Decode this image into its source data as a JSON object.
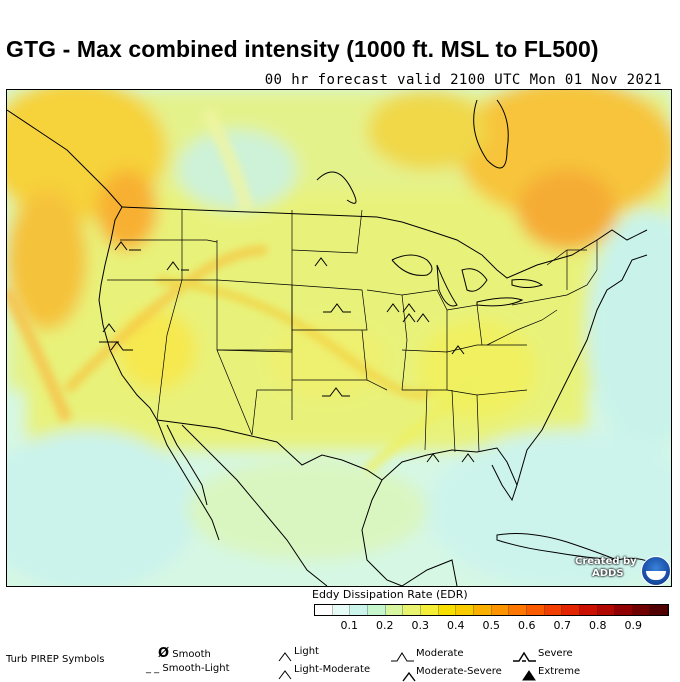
{
  "title": "GTG - Max combined intensity (1000 ft. MSL to FL500)",
  "subtitle": "00 hr forecast valid 2100 UTC Mon 01 Nov 2021",
  "credit": {
    "line1": "Created by",
    "line2": "ADDS"
  },
  "colorbar": {
    "label": "Eddy Dissipation Rate (EDR)",
    "tick_labels": [
      "0.1",
      "0.2",
      "0.3",
      "0.4",
      "0.5",
      "0.6",
      "0.7",
      "0.8",
      "0.9"
    ],
    "colors": [
      "#ffffff",
      "#e6fbf6",
      "#cbf5ea",
      "#c5f6cc",
      "#d8f6a0",
      "#e8f470",
      "#f4ee38",
      "#f7e000",
      "#f9cc00",
      "#fbb000",
      "#fc9400",
      "#fc7600",
      "#fa5a00",
      "#f23e00",
      "#e22400",
      "#cc1000",
      "#b00800",
      "#900000",
      "#700000",
      "#500000"
    ]
  },
  "legend": {
    "title": "Turb PIREP Symbols",
    "smooth": "Smooth",
    "smooth_light": "Smooth-Light",
    "light": "Light",
    "light_moderate": "Light-Moderate",
    "moderate": "Moderate",
    "moderate_severe": "Moderate-Severe",
    "severe": "Severe",
    "extreme": "Extreme"
  }
}
